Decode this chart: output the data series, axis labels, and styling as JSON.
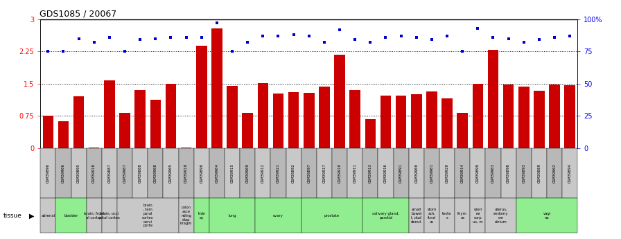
{
  "title": "GDS1085 / 20067",
  "gsm_labels": [
    "GSM39896",
    "GSM39906",
    "GSM39895",
    "GSM39918",
    "GSM39887",
    "GSM39907",
    "GSM39888",
    "GSM39908",
    "GSM39905",
    "GSM39919",
    "GSM39890",
    "GSM39904",
    "GSM39915",
    "GSM39909",
    "GSM39912",
    "GSM39921",
    "GSM39892",
    "GSM39897",
    "GSM39917",
    "GSM39910",
    "GSM39911",
    "GSM39913",
    "GSM39916",
    "GSM39891",
    "GSM39900",
    "GSM39901",
    "GSM39920",
    "GSM39914",
    "GSM39899",
    "GSM39903",
    "GSM39898",
    "GSM39893",
    "GSM39889",
    "GSM39902",
    "GSM39894"
  ],
  "log_ratio": [
    0.75,
    0.62,
    1.2,
    0.02,
    1.58,
    0.82,
    1.35,
    1.12,
    1.5,
    0.02,
    2.38,
    2.78,
    1.45,
    0.82,
    1.52,
    1.27,
    1.3,
    1.28,
    1.43,
    2.18,
    1.35,
    0.68,
    1.22,
    1.22,
    1.25,
    1.32,
    1.15,
    0.82,
    1.5,
    2.28,
    1.48,
    1.43,
    1.33,
    1.48,
    1.47
  ],
  "pct_rank": [
    75,
    75,
    85,
    82,
    86,
    75,
    84,
    85,
    86,
    86,
    86,
    97,
    75,
    82,
    87,
    87,
    88,
    87,
    82,
    92,
    84,
    82,
    86,
    87,
    86,
    84,
    87,
    75,
    93,
    86,
    85,
    82,
    84,
    86,
    87
  ],
  "bar_color": "#cc0000",
  "dot_color": "#0000cc",
  "hlines": [
    0.75,
    1.5,
    2.25
  ],
  "tissue_groups": [
    {
      "label": "adrenal",
      "start": 0,
      "end": 1,
      "green": false
    },
    {
      "label": "bladder",
      "start": 1,
      "end": 3,
      "green": true
    },
    {
      "label": "brain, front\nal cortex",
      "start": 3,
      "end": 4,
      "green": false
    },
    {
      "label": "brain, occi\npital cortex",
      "start": 4,
      "end": 5,
      "green": false
    },
    {
      "label": "brain\n, tem\nporal\ncortex\ncervi\nporte",
      "start": 5,
      "end": 9,
      "green": false
    },
    {
      "label": "colon\nasce\nnding\ndiap\nhragm",
      "start": 9,
      "end": 10,
      "green": false
    },
    {
      "label": "kidn\ney",
      "start": 10,
      "end": 11,
      "green": true
    },
    {
      "label": "lung",
      "start": 11,
      "end": 14,
      "green": true
    },
    {
      "label": "ovary",
      "start": 14,
      "end": 17,
      "green": true
    },
    {
      "label": "prostate",
      "start": 17,
      "end": 21,
      "green": true
    },
    {
      "label": "salivary gland,\nparotid",
      "start": 21,
      "end": 24,
      "green": true
    },
    {
      "label": "small\nbowel\nl, dud\ndenut",
      "start": 24,
      "end": 25,
      "green": false
    },
    {
      "label": "stom\nach,\nfund\nus",
      "start": 25,
      "end": 26,
      "green": false
    },
    {
      "label": "teste\ns",
      "start": 26,
      "end": 27,
      "green": false
    },
    {
      "label": "thym\nus",
      "start": 27,
      "end": 28,
      "green": false
    },
    {
      "label": "uteri\nne\ncorp\nus, m",
      "start": 28,
      "end": 29,
      "green": false
    },
    {
      "label": "uterus,\nendomy\nom\netrium",
      "start": 29,
      "end": 31,
      "green": false
    },
    {
      "label": "vagi\nna",
      "start": 31,
      "end": 35,
      "green": true
    }
  ],
  "green_color": "#90EE90",
  "gray_color": "#C8C8C8",
  "gsm_cell_color1": "#C8C8C8",
  "gsm_cell_color2": "#B8B8B8"
}
